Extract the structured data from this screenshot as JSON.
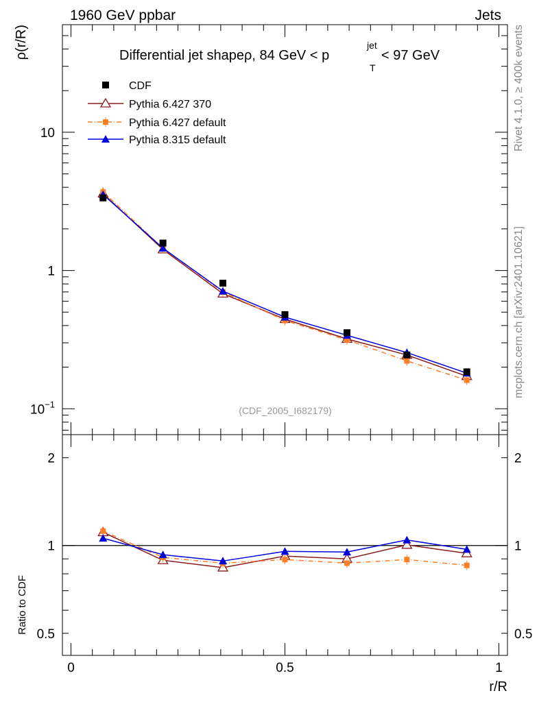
{
  "header": {
    "left": "1960 GeV ppbar",
    "right": "Jets"
  },
  "side_text": {
    "rivet": "Rivet 4.1.0, ≥ 400k events",
    "mcplots": "mcplots.cern.ch [arXiv:2401.10621]"
  },
  "title": {
    "main": "Differential jet shapeρ, 84 GeV < p",
    "sup": "jet",
    "sub": "T",
    "tail": " < 97 GeV"
  },
  "watermark": "(CDF_2005_I682179)",
  "chart_data": [
    {
      "type": "line",
      "panel": "main",
      "ylabel": "ρ(r/R)",
      "yscale": "log",
      "ylim": [
        0.065,
        60
      ],
      "xlim": [
        -0.02,
        1.02
      ],
      "ytick_labels": [
        {
          "value": 0.1,
          "label": "10",
          "exp": "−1"
        },
        {
          "value": 1,
          "label": "1",
          "exp": ""
        },
        {
          "value": 10,
          "label": "10",
          "exp": ""
        }
      ],
      "x": [
        0.075,
        0.215,
        0.355,
        0.5,
        0.645,
        0.785,
        0.925
      ],
      "series": [
        {
          "name": "CDF",
          "color": "#000000",
          "marker": "square",
          "line": "none",
          "values": [
            3.35,
            1.58,
            0.81,
            0.48,
            0.355,
            0.245,
            0.185
          ]
        },
        {
          "name": "Pythia 6.427 370",
          "color": "#8b1a1a",
          "marker": "triangle-open",
          "line": "solid",
          "values": [
            3.6,
            1.42,
            0.68,
            0.445,
            0.32,
            0.245,
            0.172
          ]
        },
        {
          "name": "Pythia 6.427 default",
          "color": "#ff7f27",
          "marker": "square-small",
          "line": "dashdot",
          "values": [
            3.7,
            1.45,
            0.7,
            0.435,
            0.315,
            0.222,
            0.161
          ]
        },
        {
          "name": "Pythia 8.315 default",
          "color": "#0000dd",
          "marker": "triangle-filled",
          "line": "solid",
          "values": [
            3.55,
            1.45,
            0.71,
            0.46,
            0.34,
            0.255,
            0.181
          ]
        }
      ]
    },
    {
      "type": "line",
      "panel": "ratio",
      "ylabel": "Ratio to CDF",
      "xlabel": "r/R",
      "yscale": "log",
      "ylim": [
        0.42,
        2.4
      ],
      "xlim": [
        -0.02,
        1.02
      ],
      "ytick_labels": [
        {
          "value": 0.5,
          "label": "0.5"
        },
        {
          "value": 1,
          "label": "1"
        },
        {
          "value": 2,
          "label": "2"
        }
      ],
      "xtick_labels": [
        {
          "value": 0,
          "label": "0"
        },
        {
          "value": 0.5,
          "label": "0.5"
        },
        {
          "value": 1,
          "label": "1"
        }
      ],
      "x": [
        0.075,
        0.215,
        0.355,
        0.5,
        0.645,
        0.785,
        0.925
      ],
      "series": [
        {
          "name": "Pythia 6.427 370",
          "color": "#8b1a1a",
          "marker": "triangle-open",
          "line": "solid",
          "values": [
            1.11,
            0.89,
            0.84,
            0.92,
            0.9,
            1.005,
            0.94
          ]
        },
        {
          "name": "Pythia 6.427 default",
          "color": "#ff7f27",
          "marker": "square-small",
          "line": "dashdot",
          "values": [
            1.12,
            0.91,
            0.87,
            0.895,
            0.87,
            0.895,
            0.855
          ]
        },
        {
          "name": "Pythia 8.315 default",
          "color": "#0000dd",
          "marker": "triangle-filled",
          "line": "solid",
          "values": [
            1.06,
            0.93,
            0.885,
            0.955,
            0.95,
            1.045,
            0.97
          ]
        }
      ]
    }
  ]
}
